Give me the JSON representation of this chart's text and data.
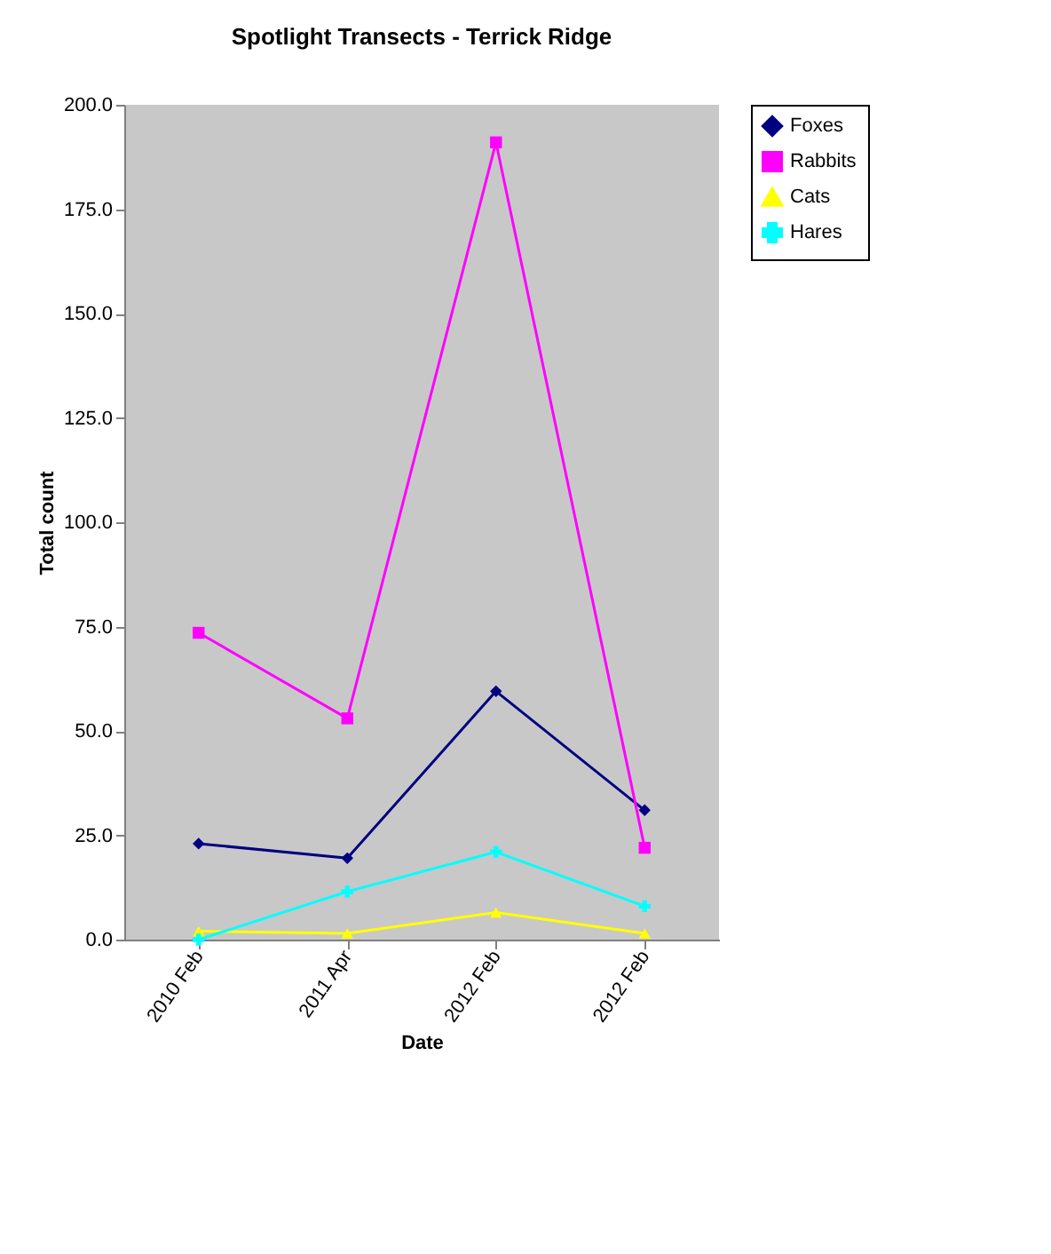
{
  "chart_data": {
    "type": "line",
    "title": "Spotlight Transects - Terrick Ridge",
    "xlabel": "Date",
    "ylabel": "Total count",
    "categories": [
      "2010 Feb",
      "2011 Apr",
      "2012 Feb",
      "2012 Feb"
    ],
    "series": [
      {
        "name": "Foxes",
        "color": "#000080",
        "marker": "diamond",
        "values": [
          23,
          19.5,
          59.5,
          31
        ]
      },
      {
        "name": "Rabbits",
        "color": "#ff00ff",
        "marker": "square",
        "values": [
          73.5,
          53,
          191,
          22
        ]
      },
      {
        "name": "Cats",
        "color": "#ffff00",
        "marker": "triangle",
        "values": [
          2,
          1.5,
          6.5,
          1.5
        ]
      },
      {
        "name": "Hares",
        "color": "#00ffff",
        "marker": "cross",
        "values": [
          0,
          11.5,
          21,
          8
        ]
      }
    ],
    "ylim": [
      0,
      200
    ],
    "yticks": [
      {
        "value": 0,
        "label": "0.0"
      },
      {
        "value": 25,
        "label": "25.0"
      },
      {
        "value": 50,
        "label": "50.0"
      },
      {
        "value": 75,
        "label": "75.0"
      },
      {
        "value": 100,
        "label": "100.0"
      },
      {
        "value": 125,
        "label": "125.0"
      },
      {
        "value": 150,
        "label": "150.0"
      },
      {
        "value": 175,
        "label": "175.0"
      },
      {
        "value": 200,
        "label": "200.0"
      }
    ],
    "grid": false,
    "legend": "right",
    "line_style": "solid"
  }
}
